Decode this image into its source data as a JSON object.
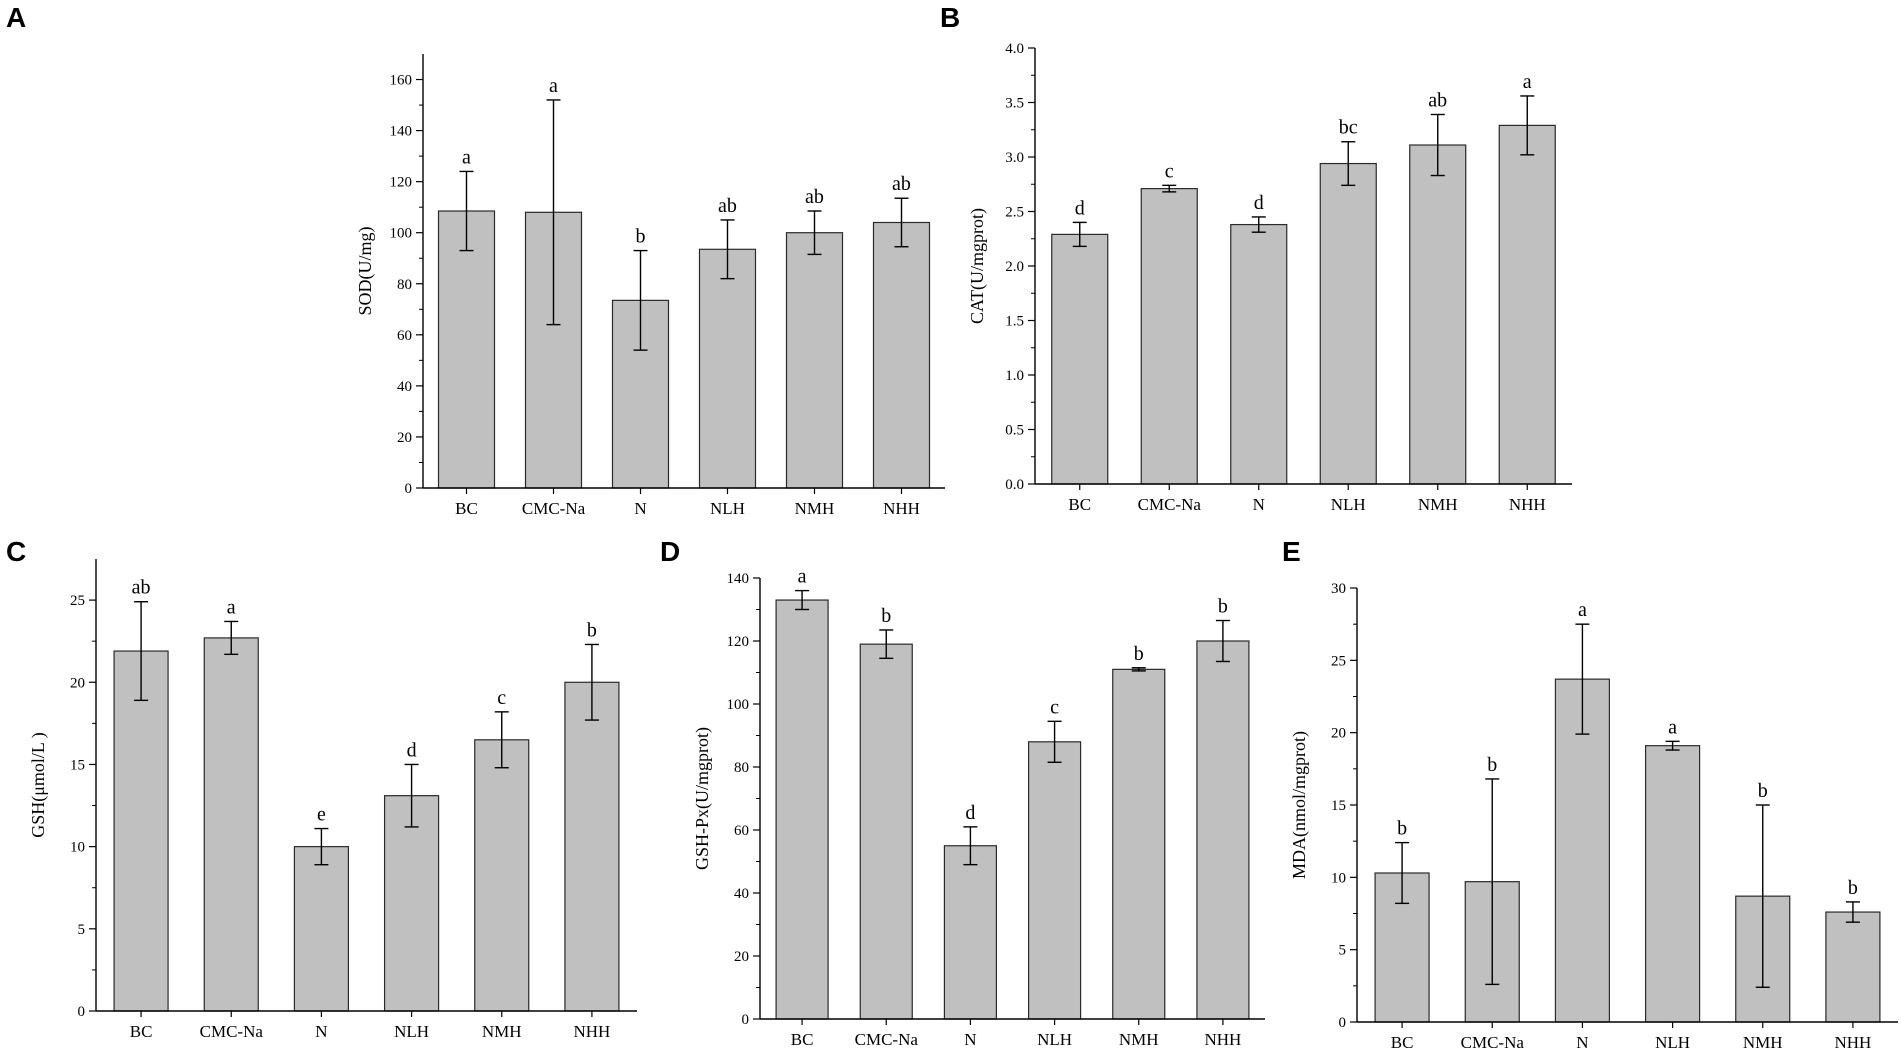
{
  "figure": {
    "panels": [
      "A",
      "B",
      "C",
      "D",
      "E"
    ]
  },
  "colors": {
    "bar_fill": "#c0c0c0",
    "bar_stroke": "#2a2a2a",
    "axis": "#000000"
  },
  "chart_data": [
    {
      "panel": "A",
      "type": "bar",
      "ylabel": "SOD(U/mg)",
      "xlabel": "",
      "categories": [
        "BC",
        "CMC-Na",
        "N",
        "NLH",
        "NMH",
        "NHH"
      ],
      "values": [
        108.5,
        108,
        73.5,
        93.5,
        100,
        104
      ],
      "errors": [
        15.5,
        44,
        19.5,
        11.5,
        8.5,
        9.5
      ],
      "letters": [
        "a",
        "a",
        "b",
        "ab",
        "ab",
        "ab"
      ],
      "ylim": [
        0,
        170
      ],
      "yticks": [
        0,
        20,
        40,
        60,
        80,
        100,
        120,
        140,
        160
      ],
      "ytick_labels": [
        "0",
        "20",
        "40",
        "60",
        "80",
        "100",
        "120",
        "140",
        "160"
      ]
    },
    {
      "panel": "B",
      "type": "bar",
      "ylabel": "CAT(U/mgprot)",
      "xlabel": "",
      "categories": [
        "BC",
        "CMC-Na",
        "N",
        "NLH",
        "NMH",
        "NHH"
      ],
      "values": [
        2.29,
        2.71,
        2.38,
        2.94,
        3.11,
        3.29
      ],
      "errors": [
        0.11,
        0.03,
        0.07,
        0.2,
        0.28,
        0.27
      ],
      "letters": [
        "d",
        "c",
        "d",
        "bc",
        "ab",
        "a"
      ],
      "ylim": [
        0,
        4.0
      ],
      "yticks": [
        0,
        0.5,
        1.0,
        1.5,
        2.0,
        2.5,
        3.0,
        3.5,
        4.0
      ],
      "ytick_labels": [
        "0.0",
        "0.5",
        "1.0",
        "1.5",
        "2.0",
        "2.5",
        "3.0",
        "3.5",
        "4.0"
      ]
    },
    {
      "panel": "C",
      "type": "bar",
      "ylabel": "GSH(μmol/L )",
      "xlabel": "",
      "categories": [
        "BC",
        "CMC-Na",
        "N",
        "NLH",
        "NMH",
        "NHH"
      ],
      "values": [
        21.9,
        22.7,
        10.0,
        13.1,
        16.5,
        20.0
      ],
      "errors": [
        3.0,
        1.0,
        1.1,
        1.9,
        1.7,
        2.3
      ],
      "letters": [
        "ab",
        "a",
        "e",
        "d",
        "c",
        "b"
      ],
      "ylim": [
        0,
        27.5
      ],
      "yticks": [
        0,
        5,
        10,
        15,
        20,
        25
      ],
      "ytick_labels": [
        "0",
        "5",
        "10",
        "15",
        "20",
        "25"
      ]
    },
    {
      "panel": "D",
      "type": "bar",
      "ylabel": "GSH-Px(U/mgprot)",
      "xlabel": "",
      "categories": [
        "BC",
        "CMC-Na",
        "N",
        "NLH",
        "NMH",
        "NHH"
      ],
      "values": [
        133,
        119,
        55,
        88,
        111,
        120
      ],
      "errors": [
        3,
        4.5,
        6,
        6.5,
        0.5,
        6.5
      ],
      "letters": [
        "a",
        "b",
        "d",
        "c",
        "b",
        "b"
      ],
      "ylim": [
        0,
        140
      ],
      "yticks": [
        0,
        20,
        40,
        60,
        80,
        100,
        120,
        140
      ],
      "ytick_labels": [
        "0",
        "20",
        "40",
        "60",
        "80",
        "100",
        "120",
        "140"
      ]
    },
    {
      "panel": "E",
      "type": "bar",
      "ylabel": "MDA(nmol/mgprot)",
      "xlabel": "",
      "categories": [
        "BC",
        "CMC-Na",
        "N",
        "NLH",
        "NMH",
        "NHH"
      ],
      "values": [
        10.3,
        9.7,
        23.7,
        19.1,
        8.7,
        7.6
      ],
      "errors": [
        2.1,
        7.1,
        3.8,
        0.3,
        6.3,
        0.7
      ],
      "letters": [
        "b",
        "b",
        "a",
        "a",
        "b",
        "b"
      ],
      "ylim": [
        0,
        30
      ],
      "yticks": [
        0,
        5,
        10,
        15,
        20,
        25,
        30
      ],
      "ytick_labels": [
        "0",
        "5",
        "10",
        "15",
        "20",
        "25",
        "30"
      ]
    }
  ]
}
